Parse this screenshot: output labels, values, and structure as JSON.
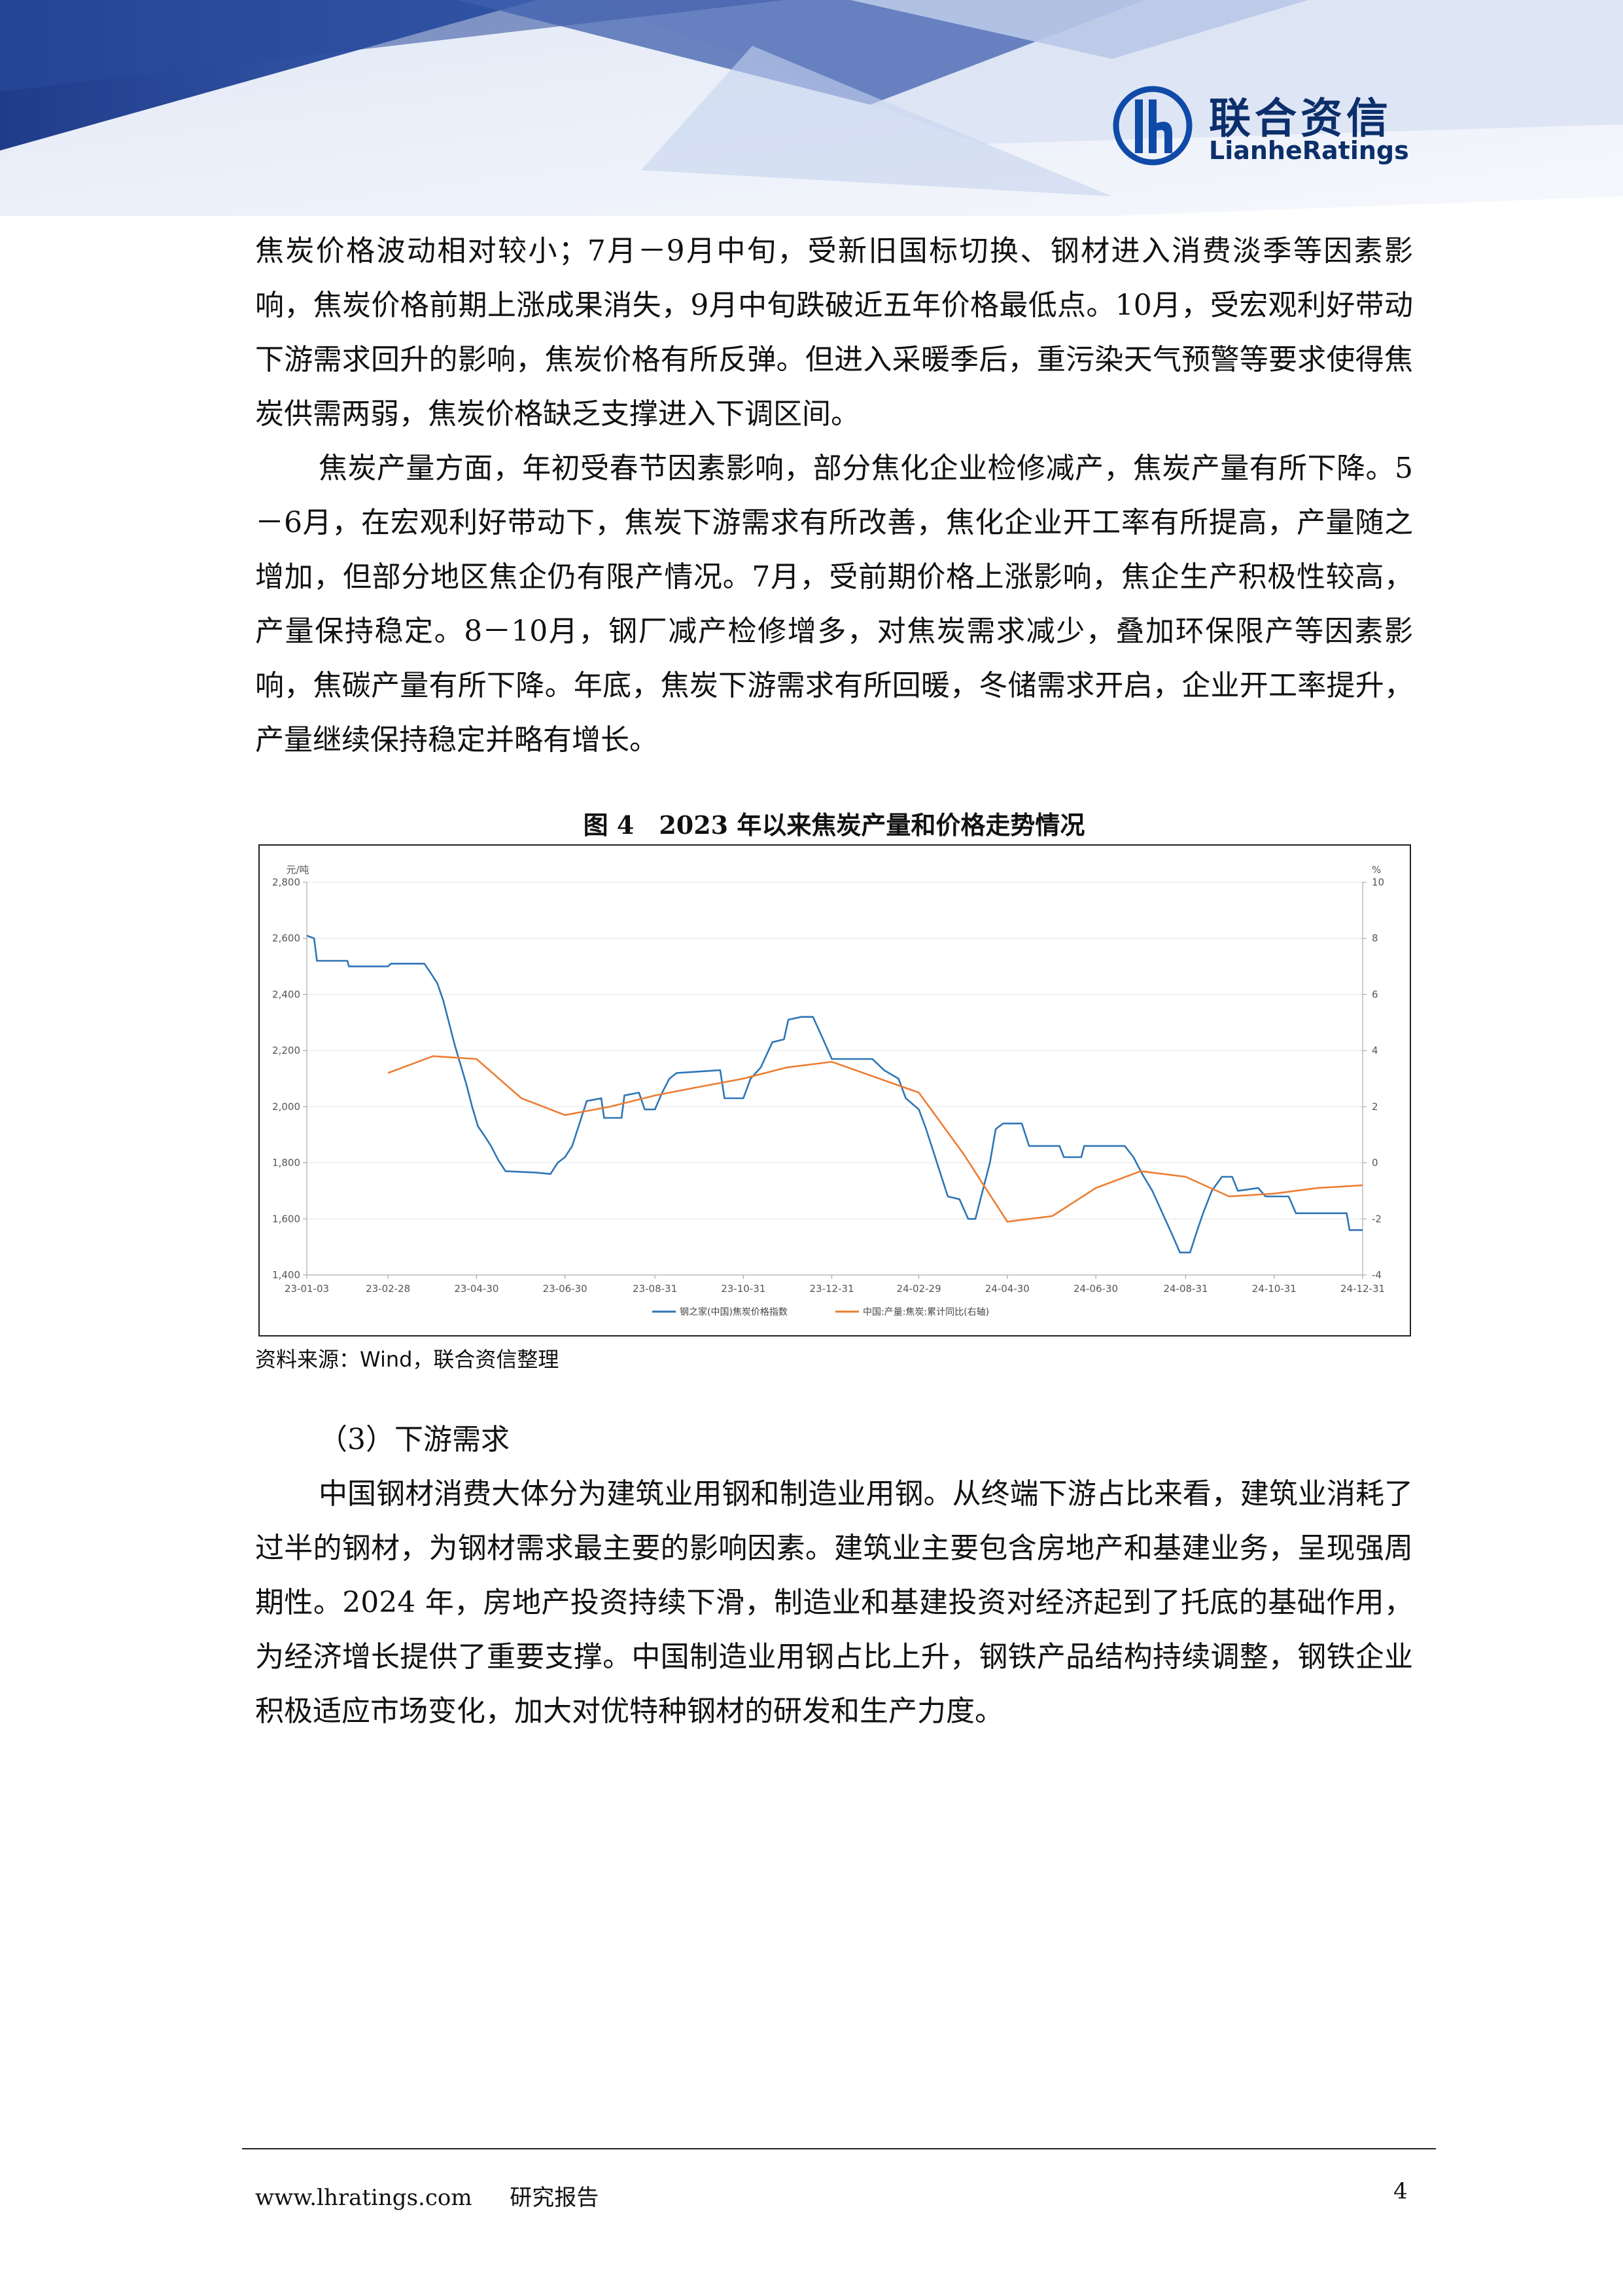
{
  "header": {
    "logo_cn": "联合资信",
    "logo_en": "LianheRatings"
  },
  "paragraphs": [
    "焦炭价格波动相对较小；7月－9月中旬，受新旧国标切换、钢材进入消费淡季等因素影响，焦炭价格前期上涨成果消失，9月中旬跌破近五年价格最低点。10月，受宏观利好带动下游需求回升的影响，焦炭价格有所反弹。但进入采暖季后，重污染天气预警等要求使得焦炭供需两弱，焦炭价格缺乏支撑进入下调区间。",
    "焦炭产量方面，年初受春节因素影响，部分焦化企业检修减产，焦炭产量有所下降。5－6月，在宏观利好带动下，焦炭下游需求有所改善，焦化企业开工率有所提高，产量随之增加，但部分地区焦企仍有限产情况。7月，受前期价格上涨影响，焦企生产积极性较高，产量保持稳定。8－10月，钢厂减产检修增多，对焦炭需求减少，叠加环保限产等因素影响，焦碳产量有所下降。年底，焦炭下游需求有所回暖，冬储需求开启，企业开工率提升，产量继续保持稳定并略有增长。"
  ],
  "figure": {
    "title": "图 4　2023 年以来焦炭产量和价格走势情况",
    "source": "资料来源：Wind，联合资信整理"
  },
  "section": {
    "heading": "（3）下游需求",
    "paragraph": "中国钢材消费大体分为建筑业用钢和制造业用钢。从终端下游占比来看，建筑业消耗了过半的钢材，为钢材需求最主要的影响因素。建筑业主要包含房地产和基建业务，呈现强周期性。2024 年，房地产投资持续下滑，制造业和基建投资对经济起到了托底的基础作用，为经济增长提供了重要支撑。中国制造业用钢占比上升，钢铁产品结构持续调整，钢铁企业积极适应市场变化，加大对优特种钢材的研发和生产力度。"
  },
  "footer": {
    "website": "www.lhratings.com",
    "label": "研究报告",
    "page": "4"
  },
  "chart_data": {
    "type": "line",
    "left_unit": "元/吨",
    "right_unit": "%",
    "left_ylim": [
      1400,
      2800
    ],
    "right_ylim": [
      -4,
      10
    ],
    "left_ticks": [
      "1,400",
      "1,600",
      "1,800",
      "2,000",
      "2,200",
      "2,400",
      "2,600",
      "2,800"
    ],
    "right_ticks": [
      "-4",
      "-2",
      "0",
      "2",
      "4",
      "6",
      "8",
      "10"
    ],
    "x_ticks": [
      "23-01-03",
      "23-02-28",
      "23-04-30",
      "23-06-30",
      "23-08-31",
      "23-10-31",
      "23-12-31",
      "24-02-29",
      "24-04-30",
      "24-06-30",
      "24-08-31",
      "24-10-31",
      "24-12-31"
    ],
    "colors": {
      "price": "#2e75b6",
      "output": "#ed7d31"
    },
    "series": [
      {
        "name": "钢之家(中国)焦炭价格指数",
        "axis": "left",
        "points": [
          [
            "2023-01-03",
            2610
          ],
          [
            "2023-01-08",
            2600
          ],
          [
            "2023-01-10",
            2520
          ],
          [
            "2023-01-31",
            2520
          ],
          [
            "2023-02-01",
            2500
          ],
          [
            "2023-02-28",
            2500
          ],
          [
            "2023-03-02",
            2510
          ],
          [
            "2023-03-25",
            2510
          ],
          [
            "2023-03-29",
            2480
          ],
          [
            "2023-04-03",
            2440
          ],
          [
            "2023-04-07",
            2380
          ],
          [
            "2023-04-11",
            2300
          ],
          [
            "2023-04-15",
            2220
          ],
          [
            "2023-04-19",
            2150
          ],
          [
            "2023-04-23",
            2080
          ],
          [
            "2023-04-27",
            2000
          ],
          [
            "2023-05-01",
            1930
          ],
          [
            "2023-05-05",
            1900
          ],
          [
            "2023-05-10",
            1860
          ],
          [
            "2023-05-15",
            1810
          ],
          [
            "2023-05-20",
            1770
          ],
          [
            "2023-06-10",
            1765
          ],
          [
            "2023-06-20",
            1760
          ],
          [
            "2023-06-25",
            1800
          ],
          [
            "2023-06-30",
            1820
          ],
          [
            "2023-07-05",
            1860
          ],
          [
            "2023-07-10",
            1940
          ],
          [
            "2023-07-15",
            2020
          ],
          [
            "2023-07-25",
            2030
          ],
          [
            "2023-07-27",
            1960
          ],
          [
            "2023-08-08",
            1960
          ],
          [
            "2023-08-10",
            2040
          ],
          [
            "2023-08-20",
            2050
          ],
          [
            "2023-08-24",
            1990
          ],
          [
            "2023-08-31",
            1990
          ],
          [
            "2023-09-05",
            2050
          ],
          [
            "2023-09-10",
            2100
          ],
          [
            "2023-09-15",
            2120
          ],
          [
            "2023-10-15",
            2130
          ],
          [
            "2023-10-18",
            2030
          ],
          [
            "2023-10-31",
            2030
          ],
          [
            "2023-11-05",
            2100
          ],
          [
            "2023-11-12",
            2140
          ],
          [
            "2023-11-20",
            2230
          ],
          [
            "2023-11-28",
            2240
          ],
          [
            "2023-12-01",
            2310
          ],
          [
            "2023-12-10",
            2320
          ],
          [
            "2023-12-18",
            2320
          ],
          [
            "2023-12-25",
            2240
          ],
          [
            "2023-12-31",
            2170
          ],
          [
            "2024-01-10",
            2170
          ],
          [
            "2024-01-28",
            2170
          ],
          [
            "2024-02-05",
            2130
          ],
          [
            "2024-02-15",
            2100
          ],
          [
            "2024-02-20",
            2030
          ],
          [
            "2024-02-29",
            1990
          ],
          [
            "2024-03-05",
            1920
          ],
          [
            "2024-03-10",
            1840
          ],
          [
            "2024-03-15",
            1760
          ],
          [
            "2024-03-20",
            1680
          ],
          [
            "2024-03-28",
            1670
          ],
          [
            "2024-04-03",
            1600
          ],
          [
            "2024-04-08",
            1600
          ],
          [
            "2024-04-12",
            1680
          ],
          [
            "2024-04-18",
            1800
          ],
          [
            "2024-04-22",
            1920
          ],
          [
            "2024-04-27",
            1940
          ],
          [
            "2024-05-10",
            1940
          ],
          [
            "2024-05-15",
            1860
          ],
          [
            "2024-06-05",
            1860
          ],
          [
            "2024-06-08",
            1820
          ],
          [
            "2024-06-20",
            1820
          ],
          [
            "2024-06-22",
            1860
          ],
          [
            "2024-07-20",
            1860
          ],
          [
            "2024-07-26",
            1820
          ],
          [
            "2024-08-01",
            1760
          ],
          [
            "2024-08-08",
            1700
          ],
          [
            "2024-08-15",
            1620
          ],
          [
            "2024-08-22",
            1540
          ],
          [
            "2024-08-27",
            1480
          ],
          [
            "2024-09-03",
            1480
          ],
          [
            "2024-09-08",
            1560
          ],
          [
            "2024-09-12",
            1620
          ],
          [
            "2024-09-18",
            1700
          ],
          [
            "2024-09-25",
            1750
          ],
          [
            "2024-10-02",
            1750
          ],
          [
            "2024-10-06",
            1700
          ],
          [
            "2024-10-20",
            1710
          ],
          [
            "2024-10-25",
            1680
          ],
          [
            "2024-11-10",
            1680
          ],
          [
            "2024-11-15",
            1620
          ],
          [
            "2024-12-20",
            1620
          ],
          [
            "2024-12-22",
            1560
          ],
          [
            "2024-12-31",
            1560
          ]
        ]
      },
      {
        "name": "中国:产量:焦炭:累计同比(右轴)",
        "axis": "right",
        "points": [
          [
            "2023-02-28",
            3.2
          ],
          [
            "2023-03-31",
            3.8
          ],
          [
            "2023-04-30",
            3.7
          ],
          [
            "2023-05-31",
            2.3
          ],
          [
            "2023-06-30",
            1.7
          ],
          [
            "2023-07-31",
            2.0
          ],
          [
            "2023-08-31",
            2.4
          ],
          [
            "2023-09-30",
            2.7
          ],
          [
            "2023-10-31",
            3.0
          ],
          [
            "2023-11-30",
            3.4
          ],
          [
            "2023-12-31",
            3.6
          ],
          [
            "2024-02-29",
            2.5
          ],
          [
            "2024-03-31",
            0.3
          ],
          [
            "2024-04-30",
            -2.1
          ],
          [
            "2024-05-31",
            -1.9
          ],
          [
            "2024-06-30",
            -0.9
          ],
          [
            "2024-07-31",
            -0.3
          ],
          [
            "2024-08-31",
            -0.5
          ],
          [
            "2024-09-30",
            -1.2
          ],
          [
            "2024-10-31",
            -1.1
          ],
          [
            "2024-11-30",
            -0.9
          ],
          [
            "2024-12-31",
            -0.8
          ]
        ]
      }
    ]
  }
}
